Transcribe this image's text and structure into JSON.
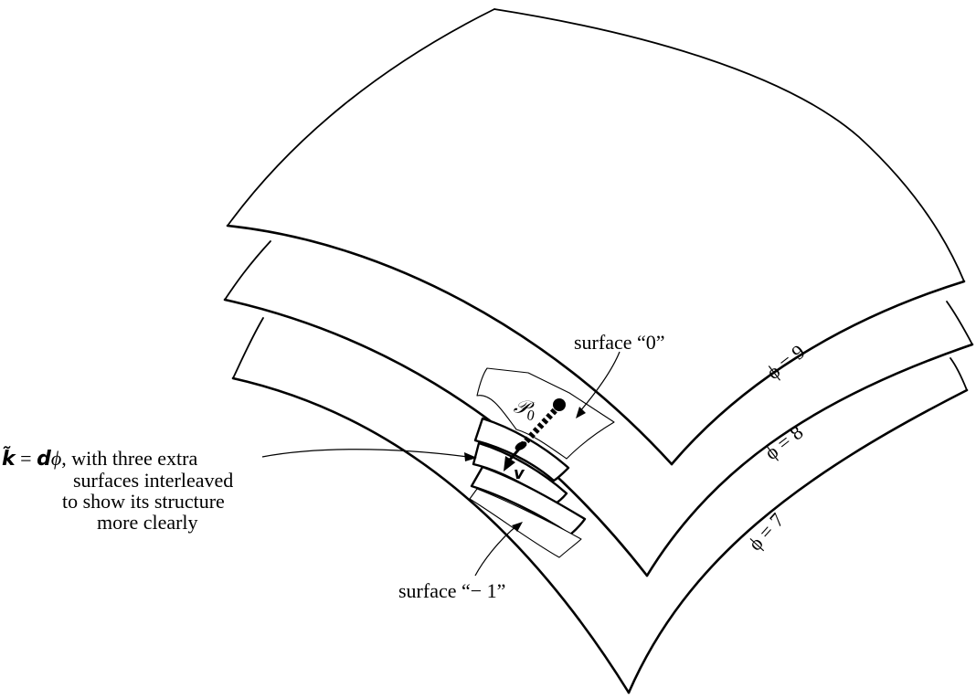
{
  "labels": {
    "surface_zero": "surface “0”",
    "surface_minus_one": "surface “− 1”",
    "phi_nine": "ϕ = 9",
    "phi_eight": "ϕ = 8",
    "phi_seven": "ϕ = 7",
    "point": "𝒫",
    "point_subscript": "0",
    "vector": "v"
  },
  "caption": {
    "k_symbol": "k̃",
    "equals": " = ",
    "d_symbol": "d",
    "phi": "ϕ",
    "rest_of_line1": ", with three extra",
    "line2": "surfaces interleaved",
    "line3": "to show its structure",
    "line4": "more clearly"
  },
  "colors": {
    "ink": "#000000",
    "paper": "#ffffff"
  }
}
